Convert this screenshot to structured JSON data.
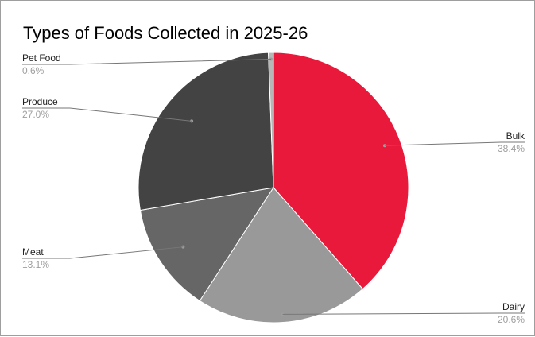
{
  "chart_data": {
    "type": "pie",
    "title": "Types of Foods Collected in 2025-26",
    "slices": [
      {
        "label": "Bulk",
        "value": 38.4,
        "pct_label": "38.4%",
        "color": "#e8193a"
      },
      {
        "label": "Dairy",
        "value": 20.6,
        "pct_label": "20.6%",
        "color": "#999999"
      },
      {
        "label": "Meat",
        "value": 13.1,
        "pct_label": "13.1%",
        "color": "#666666"
      },
      {
        "label": "Produce",
        "value": 27.0,
        "pct_label": "27.0%",
        "color": "#434343"
      },
      {
        "label": "Pet Food",
        "value": 0.6,
        "pct_label": "0.6%",
        "color": "#b7b7b7"
      }
    ],
    "start_angle": "12 o'clock",
    "direction": "clockwise",
    "legend": "labels beside slices with leader lines"
  }
}
